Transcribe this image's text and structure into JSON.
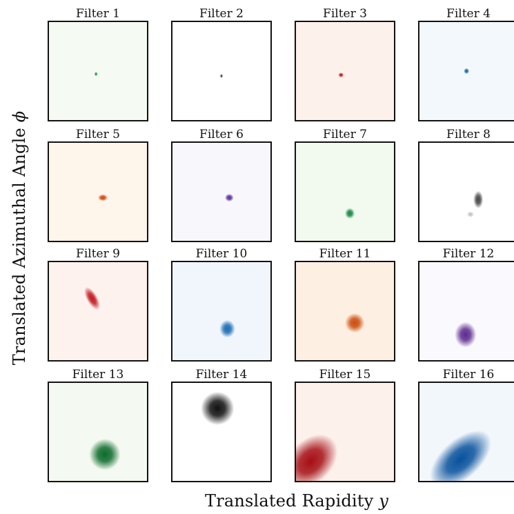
{
  "chart_data": {
    "type": "heatmap",
    "xlabel": "Translated Rapidity",
    "xlabel_symbol": "y",
    "ylabel": "Translated Azimuthal Angle",
    "ylabel_symbol": "ϕ",
    "grid": false,
    "legend": "none",
    "panels": [
      {
        "title": "Filter 1",
        "colormap": "Greens",
        "background": "#f5fbf3",
        "blobs": [
          {
            "cx": 0.48,
            "cy": 0.53,
            "rx": 0.018,
            "ry": 0.022,
            "color": "#1f8a3a",
            "intensity": 0.95
          }
        ]
      },
      {
        "title": "Filter 2",
        "colormap": "Greys",
        "background": "#ffffff",
        "blobs": [
          {
            "cx": 0.5,
            "cy": 0.55,
            "rx": 0.015,
            "ry": 0.02,
            "color": "#222222",
            "intensity": 0.9
          }
        ]
      },
      {
        "title": "Filter 3",
        "colormap": "Reds",
        "background": "#fdf1ec",
        "blobs": [
          {
            "cx": 0.46,
            "cy": 0.54,
            "rx": 0.028,
            "ry": 0.025,
            "color": "#c4121d",
            "intensity": 1.0
          }
        ]
      },
      {
        "title": "Filter 4",
        "colormap": "Blues",
        "background": "#f3f8fd",
        "blobs": [
          {
            "cx": 0.48,
            "cy": 0.5,
            "rx": 0.028,
            "ry": 0.03,
            "color": "#1463ab",
            "intensity": 1.0
          }
        ]
      },
      {
        "title": "Filter 5",
        "colormap": "Oranges",
        "background": "#fef5eb",
        "blobs": [
          {
            "cx": 0.55,
            "cy": 0.56,
            "rx": 0.05,
            "ry": 0.035,
            "color": "#d2470c",
            "intensity": 1.0
          }
        ]
      },
      {
        "title": "Filter 6",
        "colormap": "Purples",
        "background": "#f8f7fc",
        "blobs": [
          {
            "cx": 0.58,
            "cy": 0.56,
            "rx": 0.045,
            "ry": 0.04,
            "color": "#5a2f93",
            "intensity": 1.0
          }
        ]
      },
      {
        "title": "Filter 7",
        "colormap": "Greens",
        "background": "#f2f9ef",
        "blobs": [
          {
            "cx": 0.55,
            "cy": 0.72,
            "rx": 0.05,
            "ry": 0.055,
            "color": "#138a3d",
            "intensity": 1.0
          }
        ]
      },
      {
        "title": "Filter 8",
        "colormap": "Greys",
        "background": "#ffffff",
        "blobs": [
          {
            "cx": 0.6,
            "cy": 0.58,
            "rx": 0.05,
            "ry": 0.09,
            "color": "#333333",
            "intensity": 0.9
          },
          {
            "cx": 0.52,
            "cy": 0.73,
            "rx": 0.035,
            "ry": 0.03,
            "color": "#888888",
            "intensity": 0.5
          }
        ]
      },
      {
        "title": "Filter 9",
        "colormap": "Reds",
        "background": "#fdf2ee",
        "blobs": [
          {
            "cx": 0.44,
            "cy": 0.37,
            "rx": 0.055,
            "ry": 0.13,
            "color": "#c31a1f",
            "intensity": 1.0,
            "rotate": -30
          }
        ]
      },
      {
        "title": "Filter 10",
        "colormap": "Blues",
        "background": "#f1f6fc",
        "blobs": [
          {
            "cx": 0.56,
            "cy": 0.68,
            "rx": 0.08,
            "ry": 0.09,
            "color": "#1c6db3",
            "intensity": 1.0
          }
        ]
      },
      {
        "title": "Filter 11",
        "colormap": "Oranges",
        "background": "#fdf0e2",
        "blobs": [
          {
            "cx": 0.6,
            "cy": 0.62,
            "rx": 0.1,
            "ry": 0.1,
            "color": "#cc4e0e",
            "intensity": 1.0
          }
        ]
      },
      {
        "title": "Filter 12",
        "colormap": "Purples",
        "background": "#faf9fd",
        "blobs": [
          {
            "cx": 0.47,
            "cy": 0.74,
            "rx": 0.11,
            "ry": 0.13,
            "color": "#5d2c8f",
            "intensity": 1.0
          }
        ]
      },
      {
        "title": "Filter 13",
        "colormap": "Greens",
        "background": "#f4faf1",
        "blobs": [
          {
            "cx": 0.57,
            "cy": 0.73,
            "rx": 0.16,
            "ry": 0.16,
            "color": "#0d6b2c",
            "intensity": 1.0
          }
        ]
      },
      {
        "title": "Filter 14",
        "colormap": "Greys",
        "background": "#ffffff",
        "blobs": [
          {
            "cx": 0.46,
            "cy": 0.26,
            "rx": 0.17,
            "ry": 0.17,
            "color": "#111111",
            "intensity": 1.0
          }
        ]
      },
      {
        "title": "Filter 15",
        "colormap": "Reds",
        "background": "#fdf1ec",
        "blobs": [
          {
            "cx": 0.15,
            "cy": 0.8,
            "rx": 0.32,
            "ry": 0.22,
            "color": "#a50f15",
            "intensity": 1.0,
            "rotate": -45
          }
        ]
      },
      {
        "title": "Filter 16",
        "colormap": "Blues",
        "background": "#f2f7fc",
        "blobs": [
          {
            "cx": 0.42,
            "cy": 0.78,
            "rx": 0.38,
            "ry": 0.2,
            "color": "#08519c",
            "intensity": 1.0,
            "rotate": -42
          }
        ]
      }
    ]
  }
}
